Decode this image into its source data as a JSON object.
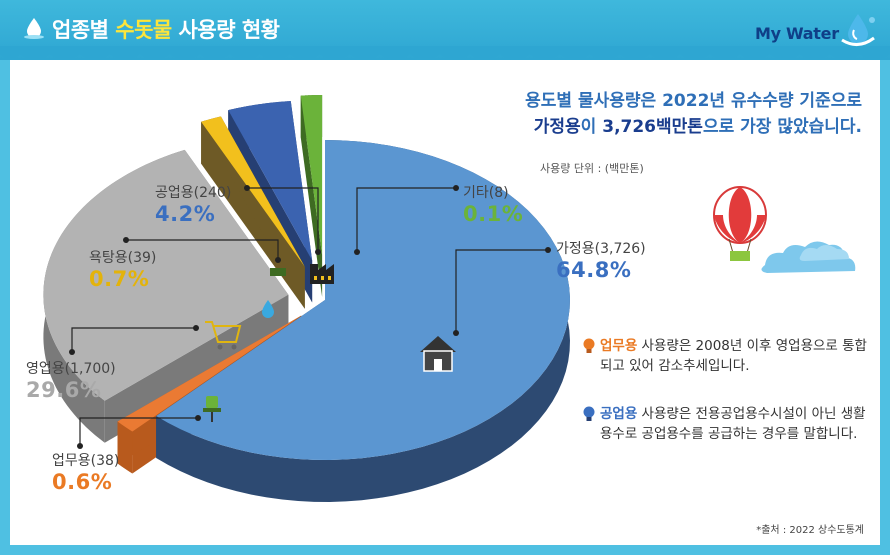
{
  "header": {
    "title_pre": "업종별 ",
    "title_highlight": "수돗물",
    "title_post": " 사용량 현황",
    "brand": "My Water"
  },
  "subtitle": {
    "line1": "용도별 물사용량은 2022년 유수수량 기준으로",
    "line2_em": "가정용",
    "line2_mid": "이 ",
    "line2_value": "3,726백만톤",
    "line2_post": "으로 가장 많았습니다."
  },
  "unit_label": "사용량 단위 : (백만톤)",
  "source": "*출처 : 2022 상수도통계",
  "chart_data": {
    "type": "pie",
    "unit": "백만톤",
    "slices": [
      {
        "name": "가정용",
        "value": 3726,
        "percent": 64.8,
        "label": "가정용(3,726)",
        "percent_label": "64.8%",
        "color": "#5b96d1",
        "side": "#2d4a72",
        "icon": "house-icon"
      },
      {
        "name": "업무용",
        "value": 38,
        "percent": 0.6,
        "label": "업무용(38)",
        "percent_label": "0.6%",
        "color": "#ea7a33",
        "side": "#b85a1d",
        "icon": "office-chair-icon"
      },
      {
        "name": "영업용",
        "value": 1700,
        "percent": 29.6,
        "label": "영업용(1,700)",
        "percent_label": "29.6%",
        "color": "#b3b3b3",
        "side": "#7a7a7a",
        "icon": "shopping-cart-icon"
      },
      {
        "name": "욕탕용",
        "value": 39,
        "percent": 0.7,
        "label": "욕탕용(39)",
        "percent_label": "0.7%",
        "color": "#f2c01d",
        "side": "#6e5a26",
        "icon": "shower-icon"
      },
      {
        "name": "공업용",
        "value": 240,
        "percent": 4.2,
        "label": "공업용(240)",
        "percent_label": "4.2%",
        "color": "#3b63b0",
        "side": "#263f73",
        "icon": "factory-icon"
      },
      {
        "name": "기타",
        "value": 8,
        "percent": 0.1,
        "label": "기타(8)",
        "percent_label": "0.1%",
        "color": "#6bb33a",
        "side": "#3e6b22",
        "icon": ""
      }
    ]
  },
  "notes": [
    {
      "keyword": "업무용",
      "text": " 사용량은 2008년 이후 영업용으로 통합되고 있어 감소추세입니다."
    },
    {
      "keyword": "공업용",
      "text": " 사용량은 전용공업용수시설이 아닌 생활용수로 공업용수를 공급하는 경우를 말합니다."
    }
  ]
}
